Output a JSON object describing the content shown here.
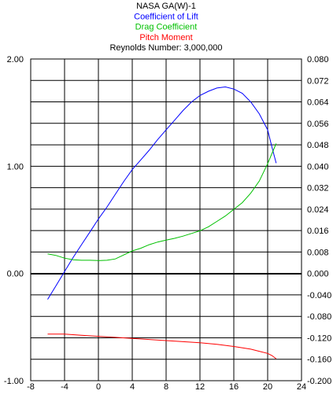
{
  "chart_data": {
    "type": "line",
    "titles": [
      {
        "text": "NASA GA(W)-1",
        "color": "#000000"
      },
      {
        "text": "Coefficient of Lift",
        "color": "#0000ff"
      },
      {
        "text": "Drag Coefficient",
        "color": "#00c000"
      },
      {
        "text": "Pitch Moment",
        "color": "#ff0000"
      },
      {
        "text": "Reynolds Number: 3,000,000",
        "color": "#000000"
      }
    ],
    "x_axis": {
      "range": [
        -8,
        24
      ],
      "ticks": [
        "-8",
        "-4",
        "0",
        "4",
        "8",
        "12",
        "16",
        "20",
        "24"
      ]
    },
    "y_left": {
      "range": [
        -1.0,
        2.0
      ],
      "ticks": [
        "2.00",
        "1.00",
        "0.00",
        "-1.00"
      ]
    },
    "y_right": {
      "ticks": [
        "0.080",
        "0.072",
        "0.064",
        "0.056",
        "0.048",
        "0.040",
        "0.032",
        "0.024",
        "0.016",
        "0.008",
        "0.000",
        "-0.040",
        "-0.080",
        "-0.120",
        "-0.160",
        "-0.200"
      ]
    },
    "grid": true,
    "series": [
      {
        "name": "Coefficient of Lift",
        "color": "#0000ff",
        "axis": "left",
        "x": [
          -6.0,
          -5.0,
          -4.0,
          -3.0,
          -2.0,
          -1.0,
          0.0,
          1.0,
          2.0,
          3.0,
          4.0,
          5.0,
          6.0,
          7.0,
          8.0,
          9.0,
          10.0,
          11.0,
          12.0,
          13.0,
          14.0,
          15.0,
          16.0,
          17.0,
          18.0,
          19.0,
          20.0,
          20.5,
          21.0
        ],
        "y": [
          -0.24,
          -0.11,
          0.02,
          0.15,
          0.27,
          0.39,
          0.51,
          0.62,
          0.74,
          0.86,
          0.97,
          1.06,
          1.15,
          1.25,
          1.34,
          1.43,
          1.52,
          1.6,
          1.66,
          1.7,
          1.73,
          1.74,
          1.72,
          1.68,
          1.6,
          1.49,
          1.34,
          1.18,
          1.03
        ]
      },
      {
        "name": "Drag Coefficient",
        "color": "#00c000",
        "axis": "right",
        "x": [
          -6.0,
          -5.0,
          -4.0,
          -3.0,
          -2.0,
          -1.0,
          0.0,
          1.0,
          2.0,
          3.0,
          4.0,
          5.0,
          6.0,
          7.0,
          8.0,
          9.0,
          10.0,
          11.0,
          12.0,
          13.0,
          14.0,
          15.0,
          16.0,
          17.0,
          18.0,
          19.0,
          20.0,
          21.0
        ],
        "y": [
          0.0074,
          0.0068,
          0.0058,
          0.0052,
          0.005,
          0.005,
          0.0049,
          0.005,
          0.0055,
          0.007,
          0.0085,
          0.0095,
          0.0108,
          0.0118,
          0.0125,
          0.0132,
          0.014,
          0.015,
          0.016,
          0.0175,
          0.0195,
          0.0215,
          0.024,
          0.0265,
          0.03,
          0.0345,
          0.041,
          0.0485
        ]
      },
      {
        "name": "Pitch Moment",
        "color": "#ff0000",
        "axis": "right",
        "x": [
          -6.0,
          -4.0,
          -2.0,
          0.0,
          2.0,
          4.0,
          6.0,
          8.0,
          10.0,
          12.0,
          14.0,
          16.0,
          18.0,
          19.0,
          20.0,
          20.5,
          21.0
        ],
        "y": [
          -0.113,
          -0.113,
          -0.115,
          -0.117,
          -0.119,
          -0.121,
          -0.123,
          -0.125,
          -0.127,
          -0.129,
          -0.132,
          -0.136,
          -0.141,
          -0.145,
          -0.149,
          -0.153,
          -0.159
        ]
      }
    ]
  }
}
